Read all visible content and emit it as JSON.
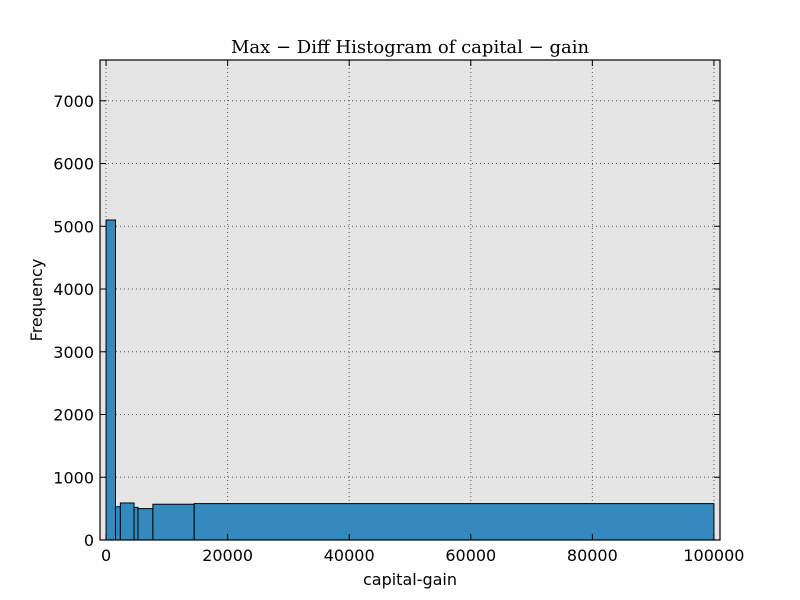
{
  "chart_data": {
    "type": "bar",
    "title": "Max − Diff Histogram of capital − gain",
    "xlabel": "capital-gain",
    "ylabel": "Frequency",
    "xlim": [
      -1000,
      101000
    ],
    "ylim": [
      0,
      7650
    ],
    "xticks": [
      0,
      20000,
      40000,
      60000,
      80000,
      100000
    ],
    "yticks": [
      0,
      1000,
      2000,
      3000,
      4000,
      5000,
      6000,
      7000
    ],
    "grid": true,
    "colors": {
      "bar": "#348abd",
      "bar_edge": "#000000",
      "plot_bg": "#e5e5e5",
      "grid": "#555555"
    },
    "bins": [
      {
        "x0": 0,
        "x1": 1550,
        "value": 5100
      },
      {
        "x0": 1550,
        "x1": 2350,
        "value": 530
      },
      {
        "x0": 2350,
        "x1": 4600,
        "value": 590
      },
      {
        "x0": 4600,
        "x1": 5250,
        "value": 520
      },
      {
        "x0": 5250,
        "x1": 7700,
        "value": 500
      },
      {
        "x0": 7700,
        "x1": 14500,
        "value": 570
      },
      {
        "x0": 14500,
        "x1": 99999,
        "value": 580
      }
    ]
  }
}
